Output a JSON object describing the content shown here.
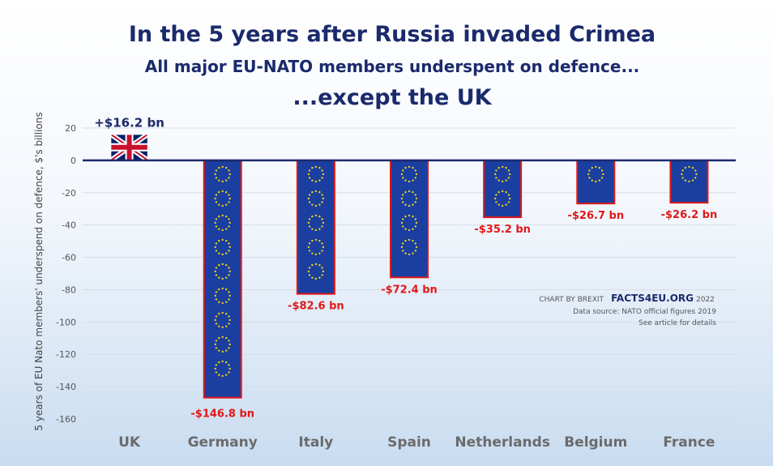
{
  "chart_data": {
    "type": "bar",
    "title": "In the 5 years after Russia invaded Crimea",
    "subtitle": "All major EU-NATO members underspent on defence...",
    "subtitle2": "...except the UK",
    "ylabel": "5 years of EU Nato members' underspend on defence, $'s billions",
    "xlabel": "",
    "ylim": [
      -160,
      20
    ],
    "yticks": [
      20,
      0,
      -20,
      -40,
      -60,
      -80,
      -100,
      -120,
      -140,
      -160
    ],
    "grid": true,
    "categories": [
      "UK",
      "Germany",
      "Italy",
      "Spain",
      "Netherlands",
      "Belgium",
      "France"
    ],
    "values": [
      16.2,
      -146.8,
      -82.6,
      -72.4,
      -35.2,
      -26.7,
      -26.2
    ],
    "data_labels": [
      "+$16.2 bn",
      "-$146.8 bn",
      "-$82.6 bn",
      "-$72.4 bn",
      "-$35.2 bn",
      "-$26.7 bn",
      "-$26.2 bn"
    ],
    "colors": {
      "eu_bar": "#1a3fa0",
      "eu_border": "#e01818",
      "eu_stars": "#f2d21b",
      "uk_blue": "#012169",
      "uk_red": "#c8102e",
      "zero_line": "#1a2a6c"
    }
  },
  "credit": {
    "prefix": "CHART BY BREXIT",
    "brand": "FACTS4EU.ORG",
    "year": "2022",
    "source": "Data source: NATO official figures  2019",
    "note": "See article for details"
  }
}
